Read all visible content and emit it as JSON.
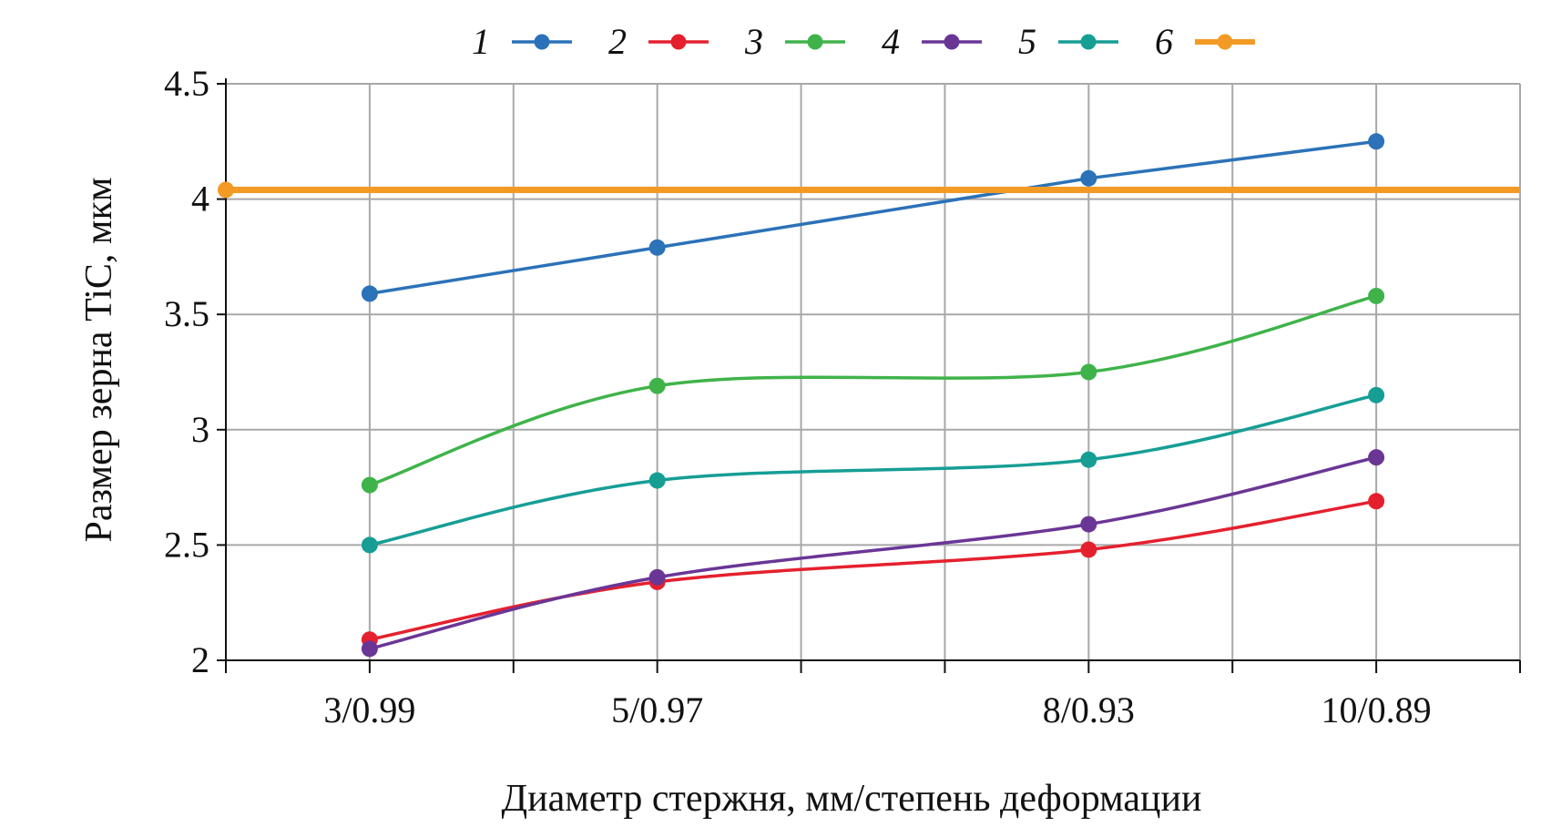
{
  "chart_data": {
    "type": "line",
    "xlabel": "Диаметр стержня, мм/степень деформации",
    "ylabel": "Размер зерна TiC, мкм",
    "x_domain": [
      0,
      9
    ],
    "ylim": [
      2,
      4.5
    ],
    "yticks": [
      "2",
      "2.5",
      "3",
      "3.5",
      "4",
      "4.5"
    ],
    "categories": [
      {
        "label": "3/0.99",
        "x": 1
      },
      {
        "label": "5/0.97",
        "x": 3
      },
      {
        "label": "8/0.93",
        "x": 6
      },
      {
        "label": "10/0.89",
        "x": 8
      }
    ],
    "grid": true,
    "legend_position": "top",
    "series": [
      {
        "name": "1",
        "color": "#2b72b8",
        "curve": "straight",
        "points": [
          [
            1,
            3.59
          ],
          [
            3,
            3.79
          ],
          [
            6,
            4.09
          ],
          [
            8,
            4.25
          ]
        ]
      },
      {
        "name": "2",
        "color": "#e5202e",
        "curve": "smooth",
        "points": [
          [
            1,
            2.09
          ],
          [
            3,
            2.34
          ],
          [
            6,
            2.48
          ],
          [
            8,
            2.69
          ]
        ]
      },
      {
        "name": "3",
        "color": "#3fb34a",
        "curve": "smooth",
        "points": [
          [
            1,
            2.76
          ],
          [
            3,
            3.19
          ],
          [
            6,
            3.25
          ],
          [
            8,
            3.58
          ]
        ]
      },
      {
        "name": "4",
        "color": "#6a3696",
        "curve": "smooth",
        "points": [
          [
            1,
            2.05
          ],
          [
            3,
            2.36
          ],
          [
            6,
            2.59
          ],
          [
            8,
            2.88
          ]
        ]
      },
      {
        "name": "5",
        "color": "#169e95",
        "curve": "smooth",
        "points": [
          [
            1,
            2.5
          ],
          [
            3,
            2.78
          ],
          [
            6,
            2.87
          ],
          [
            8,
            3.15
          ]
        ]
      },
      {
        "name": "6",
        "color": "#f39a25",
        "curve": "straight",
        "points": [
          [
            0,
            4.04
          ],
          [
            9,
            4.04
          ]
        ]
      }
    ]
  }
}
